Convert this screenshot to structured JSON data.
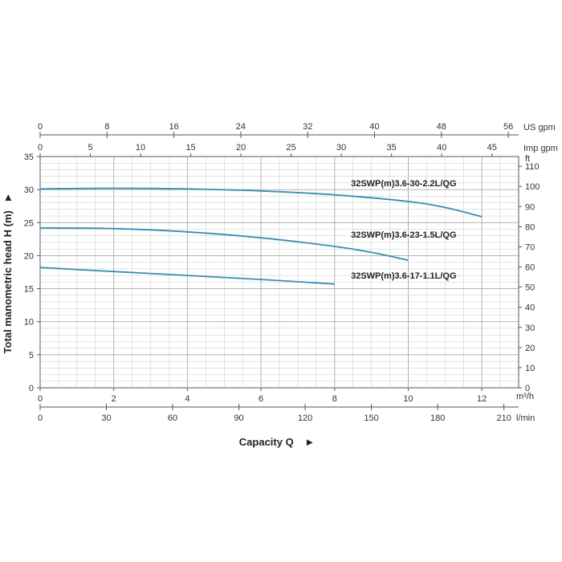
{
  "chart_data": {
    "type": "line",
    "ylabel": "Total manometric head H (m)",
    "xlabel": "Capacity Q",
    "arrow": "►",
    "xlim": [
      0,
      13
    ],
    "ylim": [
      0,
      35
    ],
    "grid": true,
    "x_unit_primary": "m³/h",
    "x_ticks_primary": [
      "0",
      "2",
      "4",
      "6",
      "8",
      "10",
      "12"
    ],
    "x_unit_lmin": "l/min",
    "x_ticks_lmin": [
      "0",
      "30",
      "60",
      "90",
      "120",
      "150",
      "180",
      "210"
    ],
    "x_unit_usgpm": "US gpm",
    "x_ticks_usgpm": [
      "0",
      "8",
      "16",
      "24",
      "32",
      "40",
      "48",
      "56"
    ],
    "x_unit_impgpm": "Imp gpm",
    "x_ticks_impgpm": [
      "0",
      "5",
      "10",
      "15",
      "20",
      "25",
      "30",
      "35",
      "40",
      "45"
    ],
    "y_ticks": [
      "0",
      "5",
      "10",
      "15",
      "20",
      "25",
      "30",
      "35"
    ],
    "y_unit_ft": "ft",
    "y_ticks_ft": [
      "0",
      "10",
      "20",
      "30",
      "40",
      "50",
      "60",
      "70",
      "80",
      "90",
      "100",
      "110"
    ],
    "series": [
      {
        "name": "32SWP(m)3.6-30-2.2L/QG",
        "points": [
          [
            0,
            30.1
          ],
          [
            2,
            30.2
          ],
          [
            4,
            30.1
          ],
          [
            6,
            29.8
          ],
          [
            8,
            29.2
          ],
          [
            10,
            28.2
          ],
          [
            11,
            27.3
          ],
          [
            12,
            25.9
          ]
        ]
      },
      {
        "name": "32SWP(m)3.6-23-1.5L/QG",
        "points": [
          [
            0,
            24.2
          ],
          [
            2,
            24.1
          ],
          [
            4,
            23.6
          ],
          [
            6,
            22.7
          ],
          [
            8,
            21.4
          ],
          [
            9,
            20.5
          ],
          [
            10,
            19.3
          ]
        ]
      },
      {
        "name": "32SWP(m)3.6-17-1.1L/QG",
        "points": [
          [
            0,
            18.2
          ],
          [
            2,
            17.6
          ],
          [
            4,
            17.0
          ],
          [
            6,
            16.4
          ],
          [
            8,
            15.7
          ]
        ]
      }
    ],
    "colors": {
      "curve": "#3a8db2",
      "grid": "#c8c8c8",
      "axis": "#555555"
    }
  }
}
